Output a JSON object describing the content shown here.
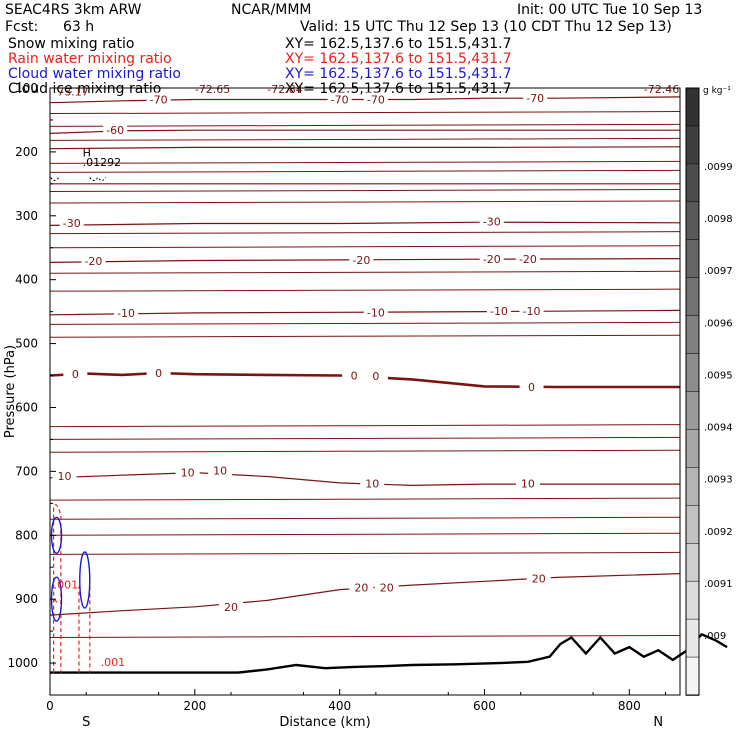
{
  "header": {
    "model": "SEAC4RS  3km ARW",
    "org": "NCAR/MMM",
    "init": "Init: 00 UTC Tue 10 Sep 13",
    "fcst_label": "Fcst:",
    "fcst_value": "63 h",
    "valid": "Valid: 15 UTC Thu 12 Sep 13 (10 CDT Thu 12 Sep 13)"
  },
  "fields": [
    {
      "name": "Snow mixing ratio",
      "xy": "XY=  162.5,137.6 to 151.5,431.7",
      "color": "#000000"
    },
    {
      "name": "Rain water mixing ratio",
      "xy": "XY=  162.5,137.6 to 151.5,431.7",
      "color": "#e8221a"
    },
    {
      "name": "Cloud water mixing ratio",
      "xy": "XY=  162.5,137.6 to 151.5,431.7",
      "color": "#1a1acd"
    },
    {
      "name": "Cloud ice mixing ratio",
      "xy": "XY=  162.5,137.6 to 151.5,431.7",
      "color": "#000000"
    }
  ],
  "chart_data": {
    "type": "line",
    "xlabel": "Distance (km)",
    "ylabel": "Pressure (hPa)",
    "xlim": [
      0,
      870
    ],
    "ylim": [
      1050,
      100
    ],
    "y_scale": "linear",
    "x_ticks": [
      "0",
      "200",
      "400",
      "600",
      "800"
    ],
    "y_ticks": [
      "100",
      "200",
      "300",
      "400",
      "500",
      "600",
      "700",
      "800",
      "900",
      "1000"
    ],
    "end_labels": {
      "left": "S",
      "right": "N"
    },
    "colorbar": {
      "unit": "g kg⁻¹",
      "labels": [
        ".009",
        ".0091",
        ".0092",
        ".0093",
        ".0094",
        ".0095",
        ".0096",
        ".0097",
        ".0098",
        ".0099"
      ]
    },
    "temperature_contours": [
      {
        "level": -70,
        "labels": [
          {
            "x": 150,
            "p": 118,
            "text": "-70"
          },
          {
            "x": 400,
            "p": 118,
            "text": "-70"
          },
          {
            "x": 450,
            "p": 118,
            "text": "-70"
          },
          {
            "x": 670,
            "p": 116,
            "text": "-70"
          }
        ],
        "points": [
          [
            0,
            123
          ],
          [
            100,
            120
          ],
          [
            200,
            118
          ],
          [
            300,
            118
          ],
          [
            400,
            118
          ],
          [
            500,
            118
          ],
          [
            600,
            116
          ],
          [
            700,
            116
          ],
          [
            870,
            114
          ]
        ]
      },
      {
        "level": -60,
        "labels": [
          {
            "x": 90,
            "p": 166,
            "text": "-60"
          }
        ],
        "points": [
          [
            0,
            171
          ],
          [
            100,
            167
          ],
          [
            200,
            166
          ],
          [
            400,
            166
          ],
          [
            600,
            166
          ],
          [
            870,
            166
          ]
        ]
      },
      {
        "level": -50,
        "labels": [],
        "points": [
          [
            0,
            195
          ],
          [
            200,
            193
          ],
          [
            400,
            193
          ],
          [
            600,
            193
          ],
          [
            870,
            192
          ]
        ]
      },
      {
        "level": -40,
        "labels": [],
        "points": [
          [
            0,
            250
          ],
          [
            200,
            250
          ],
          [
            400,
            250
          ],
          [
            600,
            250
          ],
          [
            870,
            250
          ]
        ]
      },
      {
        "level": -30,
        "labels": [
          {
            "x": 30,
            "p": 311,
            "text": "-30"
          },
          {
            "x": 610,
            "p": 309,
            "text": "-30"
          }
        ],
        "points": [
          [
            0,
            315
          ],
          [
            200,
            312
          ],
          [
            400,
            312
          ],
          [
            600,
            310
          ],
          [
            870,
            311
          ]
        ]
      },
      {
        "level": -20,
        "labels": [
          {
            "x": 60,
            "p": 371,
            "text": "-20"
          },
          {
            "x": 430,
            "p": 369,
            "text": "-20"
          },
          {
            "x": 610,
            "p": 368,
            "text": "-20"
          },
          {
            "x": 660,
            "p": 368,
            "text": "-20"
          }
        ],
        "points": [
          [
            0,
            373
          ],
          [
            200,
            370
          ],
          [
            400,
            369
          ],
          [
            600,
            368
          ],
          [
            870,
            367
          ]
        ]
      },
      {
        "level": -10,
        "labels": [
          {
            "x": 105,
            "p": 452,
            "text": "-10"
          },
          {
            "x": 450,
            "p": 451,
            "text": "-10"
          },
          {
            "x": 620,
            "p": 449,
            "text": "-10"
          },
          {
            "x": 665,
            "p": 449,
            "text": "-10"
          }
        ],
        "points": [
          [
            0,
            455
          ],
          [
            200,
            452
          ],
          [
            400,
            451
          ],
          [
            600,
            450
          ],
          [
            870,
            448
          ]
        ]
      },
      {
        "level": 0,
        "labels": [
          {
            "x": 35,
            "p": 548,
            "text": "0"
          },
          {
            "x": 150,
            "p": 546,
            "text": "0"
          },
          {
            "x": 420,
            "p": 550,
            "text": "0"
          },
          {
            "x": 450,
            "p": 551,
            "text": "0"
          },
          {
            "x": 665,
            "p": 568,
            "text": "0"
          }
        ],
        "points": [
          [
            0,
            550
          ],
          [
            50,
            547
          ],
          [
            100,
            549
          ],
          [
            150,
            546
          ],
          [
            200,
            548
          ],
          [
            300,
            549
          ],
          [
            400,
            550
          ],
          [
            500,
            556
          ],
          [
            600,
            567
          ],
          [
            700,
            568
          ],
          [
            870,
            568
          ]
        ]
      },
      {
        "level": 10,
        "labels": [
          {
            "x": 20,
            "p": 707,
            "text": "10"
          },
          {
            "x": 190,
            "p": 702,
            "text": "10"
          },
          {
            "x": 235,
            "p": 699,
            "text": "10"
          },
          {
            "x": 445,
            "p": 719,
            "text": "10"
          },
          {
            "x": 660,
            "p": 719,
            "text": "10"
          }
        ],
        "points": [
          [
            0,
            710
          ],
          [
            100,
            706
          ],
          [
            200,
            702
          ],
          [
            300,
            708
          ],
          [
            400,
            718
          ],
          [
            500,
            722
          ],
          [
            600,
            720
          ],
          [
            700,
            720
          ],
          [
            870,
            720
          ]
        ]
      },
      {
        "level": 20,
        "labels": [
          {
            "x": 250,
            "p": 912,
            "text": "20"
          },
          {
            "x": 430,
            "p": 882,
            "text": "20"
          },
          {
            "x": 465,
            "p": 882,
            "text": "20"
          },
          {
            "x": 675,
            "p": 868,
            "text": "20"
          }
        ],
        "points": [
          [
            0,
            925
          ],
          [
            100,
            918
          ],
          [
            200,
            912
          ],
          [
            300,
            902
          ],
          [
            400,
            885
          ],
          [
            500,
            878
          ],
          [
            600,
            872
          ],
          [
            700,
            866
          ],
          [
            870,
            860
          ]
        ]
      }
    ],
    "isotherm_extra_lines_hPa": [
      140,
      160,
      182,
      218,
      232,
      262,
      280,
      328,
      350,
      390,
      418,
      470,
      490,
      630,
      650,
      670,
      745,
      775,
      800,
      830,
      960
    ],
    "terrain": [
      [
        0,
        1015
      ],
      [
        100,
        1015
      ],
      [
        260,
        1015
      ],
      [
        300,
        1010
      ],
      [
        340,
        1003
      ],
      [
        380,
        1008
      ],
      [
        420,
        1006
      ],
      [
        460,
        1005
      ],
      [
        500,
        1003
      ],
      [
        560,
        1002
      ],
      [
        620,
        1000
      ],
      [
        660,
        998
      ],
      [
        690,
        990
      ],
      [
        705,
        970
      ],
      [
        720,
        960
      ],
      [
        740,
        985
      ],
      [
        760,
        960
      ],
      [
        780,
        985
      ],
      [
        800,
        975
      ],
      [
        820,
        990
      ],
      [
        840,
        980
      ],
      [
        860,
        995
      ],
      [
        880,
        980
      ],
      [
        900,
        955
      ],
      [
        920,
        965
      ],
      [
        935,
        975
      ]
    ],
    "annotations": [
      {
        "text": "73.17",
        "x": 10,
        "p": 112
      },
      {
        "text": "-72.65",
        "x": 200,
        "p": 108
      },
      {
        "text": "-72.84",
        "x": 300,
        "p": 108
      },
      {
        "text": "-72.46",
        "x": 820,
        "p": 108
      },
      {
        "text": "H",
        "x": 45,
        "p": 207
      },
      {
        "text": ".01292",
        "x": 45,
        "p": 222
      },
      {
        "text": ".001",
        "x": 70,
        "p": 1005
      },
      {
        "text": ".001",
        "x": 5,
        "p": 883
      }
    ]
  }
}
